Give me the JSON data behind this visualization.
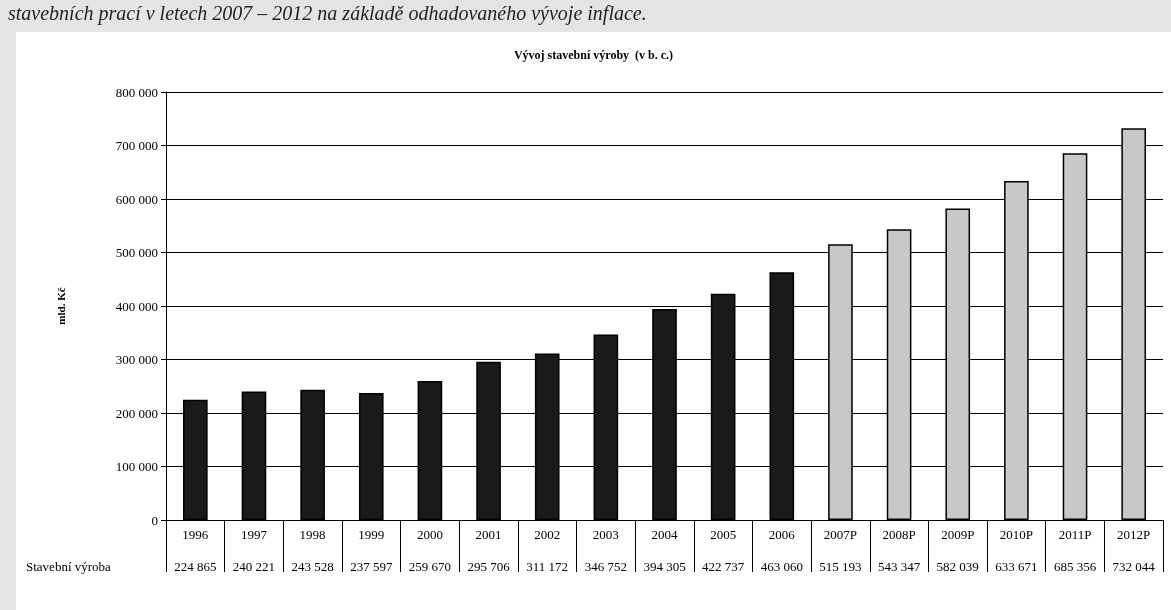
{
  "chart_data": {
    "type": "bar",
    "title": "Vývoj stavební výroby  (v b. c.)",
    "ylabel": "mld. Kč",
    "annotations": [
      "stavebních prací v letech 2007 – 2012 na základě odhadovaného vývoje inflace."
    ],
    "categories": [
      "1996",
      "1997",
      "1998",
      "1999",
      "2000",
      "2001",
      "2002",
      "2003",
      "2004",
      "2005",
      "2006",
      "2007P",
      "2008P",
      "2009P",
      "2010P",
      "2011P",
      "2012P"
    ],
    "series": [
      {
        "name": "Stavební výroba",
        "values": [
          224865,
          240221,
          243528,
          237597,
          259670,
          295706,
          311172,
          346752,
          394305,
          422737,
          463060,
          515193,
          543347,
          582039,
          633671,
          685356,
          732044
        ],
        "colors": [
          "#1a1a1a",
          "#1a1a1a",
          "#1a1a1a",
          "#1a1a1a",
          "#1a1a1a",
          "#1a1a1a",
          "#1a1a1a",
          "#1a1a1a",
          "#1a1a1a",
          "#1a1a1a",
          "#1a1a1a",
          "#c8c8c8",
          "#c8c8c8",
          "#c8c8c8",
          "#c8c8c8",
          "#c8c8c8",
          "#c8c8c8"
        ]
      }
    ],
    "ylim": [
      0,
      800000
    ],
    "yticks": [
      {
        "value": 0,
        "label": "0"
      },
      {
        "value": 100000,
        "label": "100 000"
      },
      {
        "value": 200000,
        "label": "200 000"
      },
      {
        "value": 300000,
        "label": "300 000"
      },
      {
        "value": 400000,
        "label": "400 000"
      },
      {
        "value": 500000,
        "label": "500 000"
      },
      {
        "value": 600000,
        "label": "600 000"
      },
      {
        "value": 700000,
        "label": "700 000"
      },
      {
        "value": 800000,
        "label": "800 000"
      }
    ],
    "grid": "y",
    "data_labels": true,
    "legend": false
  }
}
